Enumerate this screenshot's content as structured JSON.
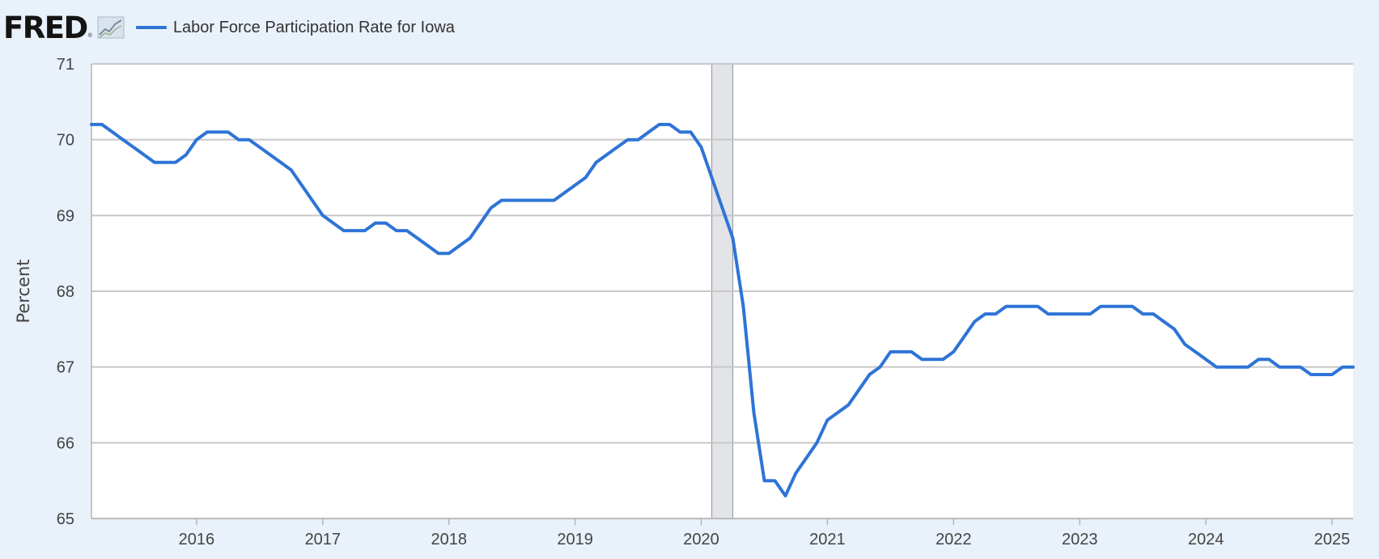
{
  "header": {
    "logo_text": "FRED",
    "logo_reg": "®",
    "graph_icon": "line-graph-icon",
    "legend_label": "Labor Force Participation Rate for Iowa"
  },
  "colors": {
    "background": "#e9f1fa",
    "plot_background": "#ffffff",
    "series": "#2e74d7",
    "grid": "#c8c8c8",
    "recession": "#e2e4e8"
  },
  "chart_data": {
    "type": "line",
    "ylabel": "Percent",
    "ylim": [
      65,
      71
    ],
    "yticks": [
      65,
      66,
      67,
      68,
      69,
      70,
      71
    ],
    "xlim": [
      "2015-03",
      "2025-03"
    ],
    "xticks": [
      "2016",
      "2017",
      "2018",
      "2019",
      "2020",
      "2021",
      "2022",
      "2023",
      "2024",
      "2025"
    ],
    "grid": true,
    "legend": "top-left",
    "recession": {
      "start": "2020-02",
      "end": "2020-04"
    },
    "series": [
      {
        "name": "Labor Force Participation Rate for Iowa",
        "x": [
          "2015-03",
          "2015-04",
          "2015-05",
          "2015-06",
          "2015-07",
          "2015-08",
          "2015-09",
          "2015-10",
          "2015-11",
          "2015-12",
          "2016-01",
          "2016-02",
          "2016-03",
          "2016-04",
          "2016-05",
          "2016-06",
          "2016-07",
          "2016-08",
          "2016-09",
          "2016-10",
          "2016-11",
          "2016-12",
          "2017-01",
          "2017-02",
          "2017-03",
          "2017-04",
          "2017-05",
          "2017-06",
          "2017-07",
          "2017-08",
          "2017-09",
          "2017-10",
          "2017-11",
          "2017-12",
          "2018-01",
          "2018-02",
          "2018-03",
          "2018-04",
          "2018-05",
          "2018-06",
          "2018-07",
          "2018-08",
          "2018-09",
          "2018-10",
          "2018-11",
          "2018-12",
          "2019-01",
          "2019-02",
          "2019-03",
          "2019-04",
          "2019-05",
          "2019-06",
          "2019-07",
          "2019-08",
          "2019-09",
          "2019-10",
          "2019-11",
          "2019-12",
          "2020-01",
          "2020-02",
          "2020-03",
          "2020-04",
          "2020-05",
          "2020-06",
          "2020-07",
          "2020-08",
          "2020-09",
          "2020-10",
          "2020-11",
          "2020-12",
          "2021-01",
          "2021-02",
          "2021-03",
          "2021-04",
          "2021-05",
          "2021-06",
          "2021-07",
          "2021-08",
          "2021-09",
          "2021-10",
          "2021-11",
          "2021-12",
          "2022-01",
          "2022-02",
          "2022-03",
          "2022-04",
          "2022-05",
          "2022-06",
          "2022-07",
          "2022-08",
          "2022-09",
          "2022-10",
          "2022-11",
          "2022-12",
          "2023-01",
          "2023-02",
          "2023-03",
          "2023-04",
          "2023-05",
          "2023-06",
          "2023-07",
          "2023-08",
          "2023-09",
          "2023-10",
          "2023-11",
          "2023-12",
          "2024-01",
          "2024-02",
          "2024-03",
          "2024-04",
          "2024-05",
          "2024-06",
          "2024-07",
          "2024-08",
          "2024-09",
          "2024-10",
          "2024-11",
          "2024-12",
          "2025-01",
          "2025-02",
          "2025-03"
        ],
        "y": [
          70.2,
          70.2,
          70.1,
          70.0,
          69.9,
          69.8,
          69.7,
          69.7,
          69.7,
          69.8,
          70.0,
          70.1,
          70.1,
          70.1,
          70.0,
          70.0,
          69.9,
          69.8,
          69.7,
          69.6,
          69.4,
          69.2,
          69.0,
          68.9,
          68.8,
          68.8,
          68.8,
          68.9,
          68.9,
          68.8,
          68.8,
          68.7,
          68.6,
          68.5,
          68.5,
          68.6,
          68.7,
          68.9,
          69.1,
          69.2,
          69.2,
          69.2,
          69.2,
          69.2,
          69.2,
          69.3,
          69.4,
          69.5,
          69.7,
          69.8,
          69.9,
          70.0,
          70.0,
          70.1,
          70.2,
          70.2,
          70.1,
          70.1,
          69.9,
          69.5,
          69.1,
          68.7,
          67.8,
          66.4,
          65.5,
          65.5,
          65.3,
          65.6,
          65.8,
          66.0,
          66.3,
          66.4,
          66.5,
          66.7,
          66.9,
          67.0,
          67.2,
          67.2,
          67.2,
          67.1,
          67.1,
          67.1,
          67.2,
          67.4,
          67.6,
          67.7,
          67.7,
          67.8,
          67.8,
          67.8,
          67.8,
          67.7,
          67.7,
          67.7,
          67.7,
          67.7,
          67.8,
          67.8,
          67.8,
          67.8,
          67.7,
          67.7,
          67.6,
          67.5,
          67.3,
          67.2,
          67.1,
          67.0,
          67.0,
          67.0,
          67.0,
          67.1,
          67.1,
          67.0,
          67.0,
          67.0,
          66.9,
          66.9,
          66.9,
          67.0,
          67.0
        ]
      }
    ]
  }
}
